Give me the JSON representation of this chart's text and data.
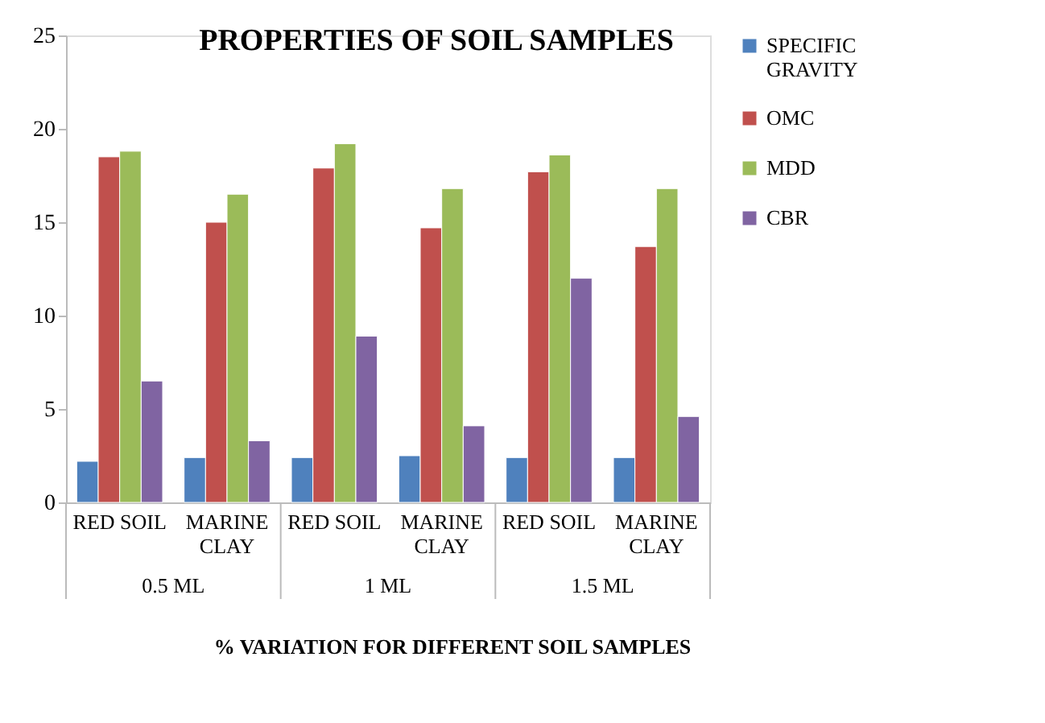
{
  "chart_data": {
    "type": "bar",
    "title": "PROPERTIES  OF SOIL SAMPLES",
    "xlabel": "% VARIATION  FOR DIFFERENT SOIL SAMPLES",
    "categories": [
      "RED SOIL",
      "MARINE CLAY",
      "RED SOIL",
      "MARINE CLAY",
      "RED SOIL",
      "MARINE CLAY"
    ],
    "annotations": [
      "0.5 ML",
      "1 ML",
      "1.5 ML"
    ],
    "series": [
      {
        "name": "SPECIFIC GRAVITY",
        "color": "#4f81bd",
        "values": [
          2.2,
          2.4,
          2.4,
          2.5,
          2.4,
          2.4
        ]
      },
      {
        "name": "OMC",
        "color": "#c0504d",
        "values": [
          18.5,
          15.0,
          17.9,
          14.7,
          17.7,
          13.7
        ]
      },
      {
        "name": "MDD",
        "color": "#9bbb59",
        "values": [
          18.8,
          16.5,
          19.2,
          16.8,
          18.6,
          16.8
        ]
      },
      {
        "name": "CBR",
        "color": "#8064a2",
        "values": [
          6.5,
          3.3,
          8.9,
          4.1,
          12.0,
          4.6
        ]
      }
    ],
    "ylim": [
      0,
      25
    ],
    "yticks": [
      0,
      5,
      10,
      15,
      20,
      25
    ],
    "grid": false,
    "legend": "right"
  }
}
